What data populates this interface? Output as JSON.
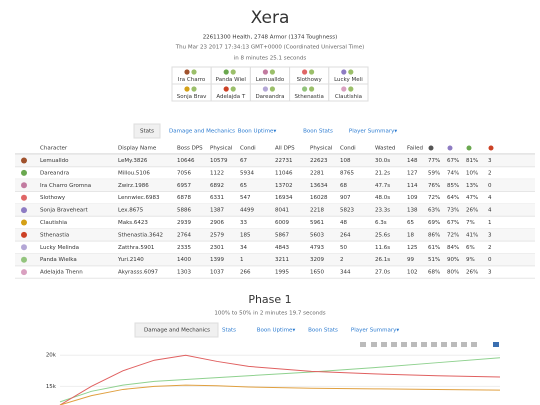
{
  "header": {
    "title": "Xera",
    "health": "22611300 Health, 2748 Armor (1374 Toughness)",
    "date": "Thu Mar 23 2017 17:34:13 GMT+0000 (Coordinated Universal Time)",
    "duration": "in 8 minutes 25.1 seconds"
  },
  "players": [
    [
      "Ira Charro",
      "Panda Wiel",
      "Lemualldo",
      "Slothowy",
      "Lucky Meli"
    ],
    [
      "Sonja Brav",
      "Adelajda T",
      "Dareandra",
      "Sthenastia",
      "Clautishia"
    ]
  ],
  "tabs": [
    "Stats",
    "Damage and Mechanics",
    "Boon Uptime▾",
    "Boon Stats",
    "Player Summary▾"
  ],
  "table": {
    "columns": [
      "Character",
      "Display Name",
      "Boss DPS",
      "Physical",
      "Condi",
      "All DPS",
      "Physical",
      "Condi",
      "Wasted",
      "Failed"
    ],
    "rows": [
      [
        "Lemualldo",
        "LeMy.3826",
        10646,
        10579,
        67,
        22731,
        22623,
        108,
        "30.0s",
        148,
        "77%",
        "67%",
        "81%",
        3
      ],
      [
        "Dareandra",
        "Millou.5106",
        7056,
        1122,
        5934,
        11046,
        2281,
        8765,
        "21.2s",
        127,
        "59%",
        "74%",
        "10%",
        2
      ],
      [
        "Ira Charro Gromna",
        "Zwirz.1986",
        6957,
        6892,
        65,
        13702,
        13634,
        68,
        "47.7s",
        114,
        "76%",
        "85%",
        "13%",
        0
      ],
      [
        "Slothowy",
        "Lennwiec.6983",
        6878,
        6331,
        547,
        16934,
        16028,
        907,
        "48.0s",
        109,
        "72%",
        "64%",
        "47%",
        4
      ],
      [
        "Sonja Braveheart",
        "Lex.8675",
        5886,
        1387,
        4499,
        8041,
        2218,
        5823,
        "23.3s",
        138,
        "63%",
        "73%",
        "26%",
        4
      ],
      [
        "Clautishia",
        "Maks.6423",
        2939,
        2906,
        33,
        6009,
        5961,
        48,
        "6.3s",
        65,
        "69%",
        "67%",
        "7%",
        1
      ],
      [
        "Sthenastia",
        "Sthenastia.3642",
        2764,
        2579,
        185,
        5867,
        5603,
        264,
        "25.6s",
        18,
        "86%",
        "72%",
        "41%",
        3
      ],
      [
        "Lucky Melinda",
        "Zatthra.5901",
        2335,
        2301,
        34,
        4843,
        4793,
        50,
        "11.6s",
        125,
        "61%",
        "84%",
        "6%",
        2
      ],
      [
        "Panda Wielka",
        "Yuri.2140",
        1400,
        1399,
        1,
        3211,
        3209,
        2,
        "26.1s",
        99,
        "51%",
        "90%",
        "9%",
        0
      ],
      [
        "Adelajda Thenn",
        "Akyrasss.6097",
        1303,
        1037,
        266,
        1995,
        1650,
        344,
        "27.0s",
        102,
        "68%",
        "80%",
        "26%",
        3
      ]
    ]
  },
  "phase": {
    "title": "Phase 1",
    "subtitle": "100% to 50% in 2 minutes 19.7 seconds",
    "tabs": [
      "Damage and Mechanics",
      "Stats",
      "Boon Uptime▾",
      "Boon Stats",
      "Player Summary▾"
    ]
  },
  "chart_data": {
    "type": "line",
    "x": [
      0,
      10,
      20,
      30,
      40,
      50,
      60,
      80,
      100,
      120,
      140
    ],
    "xlim": [
      0,
      140
    ],
    "ylim": [
      12000,
      21000
    ],
    "yticks": [
      {
        "value": 20000,
        "label": "20k"
      },
      {
        "value": 15000,
        "label": "15k"
      }
    ],
    "grid": true,
    "series": [
      {
        "color": "#8fd18f",
        "values": [
          12500,
          14200,
          15200,
          15800,
          16100,
          16400,
          16700,
          17300,
          18000,
          18800,
          19600
        ]
      },
      {
        "color": "#e06060",
        "values": [
          12000,
          15000,
          17500,
          19200,
          20000,
          19000,
          18200,
          17400,
          17000,
          16700,
          16500
        ]
      },
      {
        "color": "#e0a040",
        "values": [
          12000,
          13500,
          14500,
          15000,
          15200,
          15100,
          14900,
          14700,
          14600,
          14500,
          14400
        ]
      }
    ]
  }
}
